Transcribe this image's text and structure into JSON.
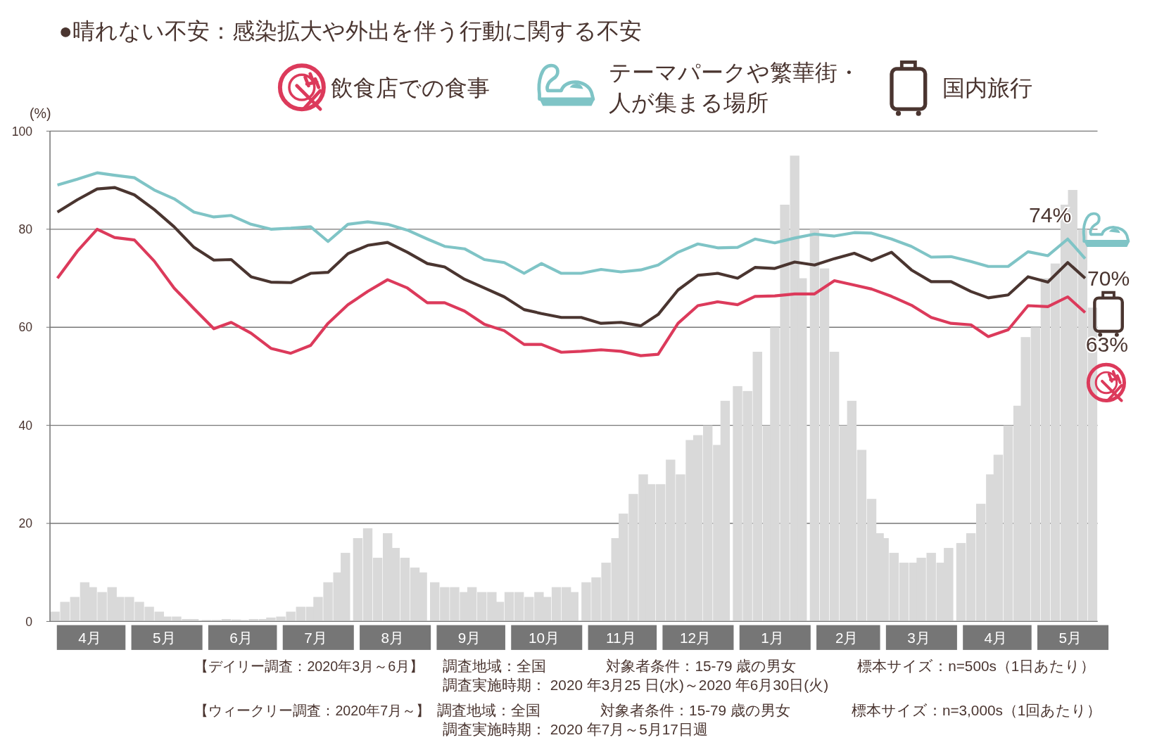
{
  "chart_data": {
    "type": "line",
    "title": "●晴れない不安：感染拡大や外出を伴う行動に関する不安",
    "ylabel": "(%)",
    "xlim": [
      "2020-03-31",
      "2021-05-27"
    ],
    "ylim": [
      0,
      100
    ],
    "yticks": [
      0,
      20,
      40,
      60,
      80,
      100
    ],
    "xticks": [
      {
        "value": "2020-04-16",
        "label": "4月"
      },
      {
        "value": "2020-05-16",
        "label": "5月"
      },
      {
        "value": "2020-06-16",
        "label": "6月"
      },
      {
        "value": "2020-07-16",
        "label": "7月"
      },
      {
        "value": "2020-08-16",
        "label": "8月"
      },
      {
        "value": "2020-09-16",
        "label": "9月"
      },
      {
        "value": "2020-10-16",
        "label": "10月"
      },
      {
        "value": "2020-11-16",
        "label": "11月"
      },
      {
        "value": "2020-12-16",
        "label": "12月"
      },
      {
        "value": "2021-01-16",
        "label": "1月"
      },
      {
        "value": "2021-02-15",
        "label": "2月"
      },
      {
        "value": "2021-03-16",
        "label": "3月"
      },
      {
        "value": "2021-04-16",
        "label": "4月"
      },
      {
        "value": "2021-05-16",
        "label": "5月"
      }
    ],
    "grid": "y",
    "legend": "top",
    "marker": "none",
    "line_style": "solid",
    "x": [
      "2020-04-03",
      "2020-04-11",
      "2020-04-19",
      "2020-04-26",
      "2020-05-04",
      "2020-05-12",
      "2020-05-20",
      "2020-05-28",
      "2020-06-05",
      "2020-06-12",
      "2020-06-20",
      "2020-06-28",
      "2020-07-06",
      "2020-07-14",
      "2020-07-21",
      "2020-07-29",
      "2020-08-06",
      "2020-08-14",
      "2020-08-22",
      "2020-08-30",
      "2020-09-06",
      "2020-09-14",
      "2020-09-22",
      "2020-09-30",
      "2020-10-08",
      "2020-10-15",
      "2020-10-23",
      "2020-10-31",
      "2020-11-08",
      "2020-11-16",
      "2020-11-24",
      "2020-12-01",
      "2020-12-09",
      "2020-12-17",
      "2020-12-25",
      "2021-01-02",
      "2021-01-09",
      "2021-01-17",
      "2021-01-25",
      "2021-02-02",
      "2021-02-10",
      "2021-02-18",
      "2021-02-25",
      "2021-03-05",
      "2021-03-13",
      "2021-03-21",
      "2021-03-29",
      "2021-04-06",
      "2021-04-13",
      "2021-04-21",
      "2021-04-29",
      "2021-05-07",
      "2021-05-15",
      "2021-05-22"
    ],
    "series": [
      {
        "type": "bar",
        "color": "#d9d9d9",
        "x": [
          "2020-04-02",
          "2020-04-06",
          "2020-04-10",
          "2020-04-14",
          "2020-04-17",
          "2020-04-21",
          "2020-04-25",
          "2020-04-28",
          "2020-05-02",
          "2020-05-06",
          "2020-05-10",
          "2020-05-14",
          "2020-05-17",
          "2020-05-21",
          "2020-05-25",
          "2020-05-28",
          "2020-06-02",
          "2020-06-06",
          "2020-06-10",
          "2020-06-14",
          "2020-06-17",
          "2020-06-21",
          "2020-06-25",
          "2020-06-28",
          "2020-07-02",
          "2020-07-06",
          "2020-07-10",
          "2020-07-14",
          "2020-07-17",
          "2020-07-21",
          "2020-07-25",
          "2020-07-28",
          "2020-08-02",
          "2020-08-06",
          "2020-08-10",
          "2020-08-14",
          "2020-08-17",
          "2020-08-21",
          "2020-08-25",
          "2020-08-28",
          "2020-09-02",
          "2020-09-06",
          "2020-09-10",
          "2020-09-14",
          "2020-09-17",
          "2020-09-21",
          "2020-09-25",
          "2020-09-28",
          "2020-10-02",
          "2020-10-06",
          "2020-10-10",
          "2020-10-14",
          "2020-10-17",
          "2020-10-21",
          "2020-10-25",
          "2020-10-28",
          "2020-11-02",
          "2020-11-06",
          "2020-11-10",
          "2020-11-14",
          "2020-11-17",
          "2020-11-21",
          "2020-11-25",
          "2020-11-28",
          "2020-12-02",
          "2020-12-06",
          "2020-12-10",
          "2020-12-14",
          "2020-12-17",
          "2020-12-21",
          "2020-12-25",
          "2020-12-28",
          "2021-01-02",
          "2021-01-06",
          "2021-01-10",
          "2021-01-14",
          "2021-01-17",
          "2021-01-21",
          "2021-01-25",
          "2021-01-28",
          "2021-02-02",
          "2021-02-06",
          "2021-02-10",
          "2021-02-14",
          "2021-02-17",
          "2021-02-21",
          "2021-02-25",
          "2021-02-28",
          "2021-03-02",
          "2021-03-06",
          "2021-03-10",
          "2021-03-14",
          "2021-03-17",
          "2021-03-21",
          "2021-03-25",
          "2021-03-28",
          "2021-04-02",
          "2021-04-06",
          "2021-04-10",
          "2021-04-14",
          "2021-04-17",
          "2021-04-21",
          "2021-04-25",
          "2021-04-28",
          "2021-05-02",
          "2021-05-06",
          "2021-05-10",
          "2021-05-14",
          "2021-05-17",
          "2021-05-21",
          "2021-05-25"
        ],
        "values": [
          2,
          4,
          5,
          8,
          7,
          6,
          7,
          5,
          5,
          4,
          3,
          2,
          1,
          1,
          0.5,
          0.5,
          0.3,
          0.3,
          0.5,
          0.4,
          0.3,
          0.5,
          0.5,
          0.8,
          1,
          2,
          3,
          3,
          5,
          8,
          10,
          14,
          17,
          19,
          13,
          18,
          15,
          13,
          11,
          10,
          8,
          7,
          7,
          6,
          7,
          6,
          6,
          4,
          6,
          6,
          5,
          6,
          5,
          7,
          7,
          6,
          8,
          9,
          12,
          17,
          22,
          26,
          30,
          28,
          28,
          33,
          30,
          37,
          38,
          40,
          36,
          45,
          48,
          47,
          55,
          40,
          60,
          85,
          95,
          70,
          80,
          72,
          55,
          40,
          45,
          35,
          25,
          18,
          17,
          14,
          12,
          12,
          13,
          14,
          12,
          15,
          16,
          18,
          24,
          30,
          34,
          40,
          44,
          58,
          60,
          70,
          73,
          85,
          88,
          80,
          64
        ]
      },
      {
        "name": "飲食店での食事",
        "color": "#dc3a5b",
        "values": [
          70,
          75.5,
          80,
          78.3,
          77.8,
          73.5,
          68,
          63.8,
          59.7,
          61,
          58.8,
          55.7,
          54.7,
          56.3,
          60.8,
          64.6,
          67.3,
          69.7,
          68,
          65,
          65,
          63.3,
          60.6,
          59.3,
          56.5,
          56.5,
          54.9,
          55.1,
          55.4,
          55.1,
          54.2,
          54.5,
          60.8,
          64.4,
          65.2,
          64.6,
          66.3,
          66.4,
          66.8,
          66.8,
          69.5,
          68.6,
          67.8,
          66.3,
          64.5,
          62,
          60.8,
          60.5,
          58.1,
          59.5,
          64.4,
          64.2,
          66.2,
          63
        ],
        "value_labels": [
          null,
          null,
          null,
          null,
          null,
          null,
          null,
          null,
          null,
          null,
          null,
          null,
          null,
          null,
          null,
          null,
          null,
          null,
          null,
          null,
          null,
          null,
          null,
          null,
          null,
          null,
          null,
          null,
          null,
          null,
          null,
          null,
          null,
          null,
          null,
          null,
          null,
          null,
          null,
          null,
          null,
          null,
          null,
          null,
          null,
          null,
          null,
          null,
          null,
          null,
          null,
          null,
          null,
          "63%"
        ]
      },
      {
        "name": "テーマパークや繁華街・人が集まる場所",
        "color": "#7fc4c6",
        "values": [
          89,
          90.2,
          91.5,
          91,
          90.5,
          88,
          86.2,
          83.5,
          82.5,
          82.8,
          81,
          80,
          80.2,
          80.5,
          77.5,
          81,
          81.5,
          81,
          79.8,
          78,
          76.5,
          76,
          73.8,
          73.2,
          71,
          73,
          71,
          71,
          71.8,
          71.3,
          71.7,
          72.7,
          75.3,
          77,
          76.2,
          76.3,
          78,
          77.2,
          78.2,
          79,
          78.6,
          79.3,
          79.2,
          78,
          76.5,
          74.3,
          74.4,
          73.4,
          72.4,
          72.4,
          75.4,
          74.6,
          78,
          74
        ],
        "value_labels": [
          null,
          null,
          null,
          null,
          null,
          null,
          null,
          null,
          null,
          null,
          null,
          null,
          null,
          null,
          null,
          null,
          null,
          null,
          null,
          null,
          null,
          null,
          null,
          null,
          null,
          null,
          null,
          null,
          null,
          null,
          null,
          null,
          null,
          null,
          null,
          null,
          null,
          null,
          null,
          null,
          null,
          null,
          null,
          null,
          null,
          null,
          null,
          null,
          null,
          null,
          null,
          null,
          null,
          "74%"
        ]
      },
      {
        "name": "国内旅行",
        "color": "#4a3530",
        "values": [
          83.5,
          86,
          88.2,
          88.5,
          87,
          84,
          80.5,
          76.3,
          73.7,
          73.8,
          70.3,
          69.2,
          69.1,
          71,
          71.2,
          75,
          76.7,
          77.3,
          75.3,
          73,
          72.3,
          69.8,
          68,
          66.2,
          63.6,
          62.8,
          62,
          62,
          60.8,
          61,
          60.3,
          62.6,
          67.6,
          70.6,
          71,
          70,
          72.2,
          72,
          73.3,
          72.7,
          74,
          75.1,
          73.6,
          75.3,
          71.7,
          69.3,
          69.3,
          67.3,
          66,
          66.6,
          70.3,
          69.2,
          73.2,
          70
        ],
        "value_labels": [
          null,
          null,
          null,
          null,
          null,
          null,
          null,
          null,
          null,
          null,
          null,
          null,
          null,
          null,
          null,
          null,
          null,
          null,
          null,
          null,
          null,
          null,
          null,
          null,
          null,
          null,
          null,
          null,
          null,
          null,
          null,
          null,
          null,
          null,
          null,
          null,
          null,
          null,
          null,
          null,
          null,
          null,
          null,
          null,
          null,
          null,
          null,
          null,
          null,
          null,
          null,
          null,
          null,
          "70%"
        ]
      }
    ],
    "annotations": [
      "【デイリー調査：2020年3月～6月】",
      "調査地域：全国",
      "対象者条件：15-79 歳の男女",
      "標本サイズ：n=500s（1日あたり）",
      "調査実施時期： 2020 年3月25 日(水)～2020 年6月30日(火)",
      "【ウィークリー調査：2020年7月～】",
      "調査地域：全国",
      "対象者条件：15-79 歳の男女",
      "標本サイズ：n=3,000s（1回あたり）",
      "調査実施時期： 2020 年7月～5月17日週"
    ]
  }
}
